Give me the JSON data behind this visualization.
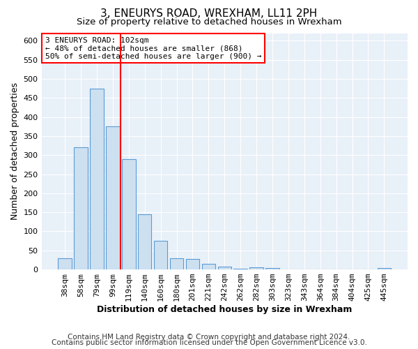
{
  "title": "3, ENEURYS ROAD, WREXHAM, LL11 2PH",
  "subtitle": "Size of property relative to detached houses in Wrexham",
  "xlabel": "Distribution of detached houses by size in Wrexham",
  "ylabel": "Number of detached properties",
  "bar_labels": [
    "38sqm",
    "58sqm",
    "79sqm",
    "99sqm",
    "119sqm",
    "140sqm",
    "160sqm",
    "180sqm",
    "201sqm",
    "221sqm",
    "242sqm",
    "262sqm",
    "282sqm",
    "303sqm",
    "323sqm",
    "343sqm",
    "364sqm",
    "384sqm",
    "404sqm",
    "425sqm",
    "445sqm"
  ],
  "bar_values": [
    30,
    320,
    475,
    375,
    290,
    145,
    75,
    30,
    28,
    15,
    7,
    2,
    5,
    3,
    1,
    1,
    1,
    0,
    0,
    0,
    3
  ],
  "bar_color": "#cde0f0",
  "bar_edge_color": "#5b9bd5",
  "vline_x": 3.5,
  "vline_color": "red",
  "ylim": [
    0,
    620
  ],
  "yticks": [
    0,
    50,
    100,
    150,
    200,
    250,
    300,
    350,
    400,
    450,
    500,
    550,
    600
  ],
  "annotation_title": "3 ENEURYS ROAD: 102sqm",
  "annotation_line1": "← 48% of detached houses are smaller (868)",
  "annotation_line2": "50% of semi-detached houses are larger (900) →",
  "annotation_box_color": "red",
  "footer_line1": "Contains HM Land Registry data © Crown copyright and database right 2024.",
  "footer_line2": "Contains public sector information licensed under the Open Government Licence v3.0.",
  "plot_bg_color": "#e8f0f8",
  "fig_bg_color": "#ffffff",
  "grid_color": "#ffffff",
  "title_fontsize": 11,
  "subtitle_fontsize": 9.5,
  "axis_label_fontsize": 9,
  "tick_fontsize": 8,
  "footer_fontsize": 7.5,
  "bar_width": 0.85
}
